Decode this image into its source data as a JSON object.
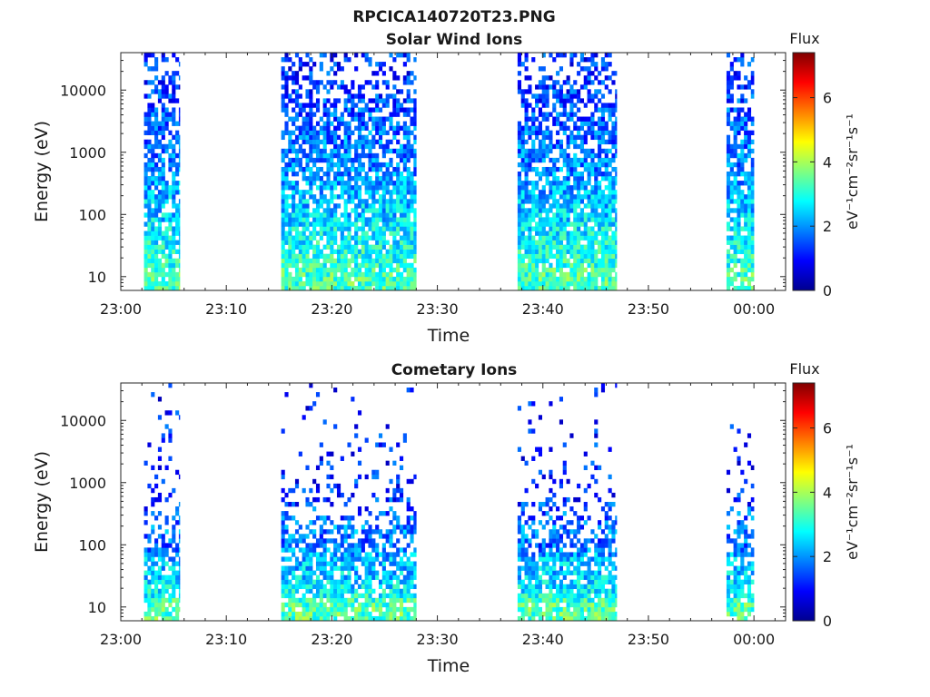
{
  "figure": {
    "title": "RPCICA140720T23.PNG"
  },
  "chart_data": [
    {
      "type": "heatmap",
      "title": "Solar Wind Ions",
      "xlabel": "Time",
      "ylabel": "Energy (eV)",
      "y_scale": "log",
      "ylim": [
        6,
        40000
      ],
      "x_ticks": [
        "23:00",
        "23:10",
        "23:20",
        "23:30",
        "23:40",
        "23:50",
        "00:00"
      ],
      "y_ticks": [
        "10",
        "100",
        "1000",
        "10000"
      ],
      "x_range_minutes": [
        0,
        63
      ],
      "colorbar": {
        "title": "Flux",
        "label": "eV⁻¹cm⁻²sr⁻¹s⁻¹",
        "ticks": [
          "0",
          "2",
          "4",
          "6"
        ],
        "range": [
          0,
          7.4
        ],
        "colormap": "jet"
      },
      "intervals_minutes": [
        [
          2.2,
          5.6
        ],
        [
          15.2,
          28.0
        ],
        [
          37.6,
          47.0
        ],
        [
          57.4,
          60.0
        ]
      ],
      "flux_distribution": {
        "energy_levels_eV": [
          10,
          20,
          35,
          60,
          100,
          170,
          300,
          500,
          1000,
          2000,
          5000,
          10000,
          20000
        ],
        "typical_flux": [
          3.3,
          3.0,
          2.8,
          2.7,
          2.4,
          2.3,
          2.1,
          1.9,
          1.8,
          1.7,
          1.5,
          1.3,
          1.2
        ],
        "fill_probability": [
          0.9,
          0.9,
          0.9,
          0.88,
          0.85,
          0.8,
          0.75,
          0.72,
          0.7,
          0.68,
          0.62,
          0.5,
          0.35
        ]
      },
      "grid": false,
      "legend": "colorbar-right"
    },
    {
      "type": "heatmap",
      "title": "Cometary Ions",
      "xlabel": "Time",
      "ylabel": "Energy (eV)",
      "y_scale": "log",
      "ylim": [
        6,
        40000
      ],
      "x_ticks": [
        "23:00",
        "23:10",
        "23:20",
        "23:30",
        "23:40",
        "23:50",
        "00:00"
      ],
      "y_ticks": [
        "10",
        "100",
        "1000",
        "10000"
      ],
      "x_range_minutes": [
        0,
        63
      ],
      "colorbar": {
        "title": "Flux",
        "label": "eV⁻¹cm⁻²sr⁻¹s⁻¹",
        "ticks": [
          "0",
          "2",
          "4",
          "6"
        ],
        "range": [
          0,
          7.4
        ],
        "colormap": "jet"
      },
      "intervals_minutes": [
        [
          2.2,
          5.6
        ],
        [
          15.2,
          28.0
        ],
        [
          37.6,
          47.0
        ],
        [
          57.4,
          60.0
        ]
      ],
      "flux_distribution": {
        "energy_levels_eV": [
          10,
          20,
          35,
          60,
          100,
          170,
          300,
          500,
          1000,
          2000,
          5000,
          10000,
          20000
        ],
        "typical_flux": [
          3.4,
          2.6,
          2.4,
          2.3,
          1.6,
          1.9,
          1.6,
          1.3,
          1.2,
          1.2,
          1.2,
          1.1,
          1.1
        ],
        "fill_probability": [
          0.85,
          0.8,
          0.8,
          0.75,
          0.55,
          0.5,
          0.3,
          0.22,
          0.15,
          0.12,
          0.08,
          0.05,
          0.03
        ]
      },
      "grid": false,
      "legend": "colorbar-right"
    }
  ]
}
